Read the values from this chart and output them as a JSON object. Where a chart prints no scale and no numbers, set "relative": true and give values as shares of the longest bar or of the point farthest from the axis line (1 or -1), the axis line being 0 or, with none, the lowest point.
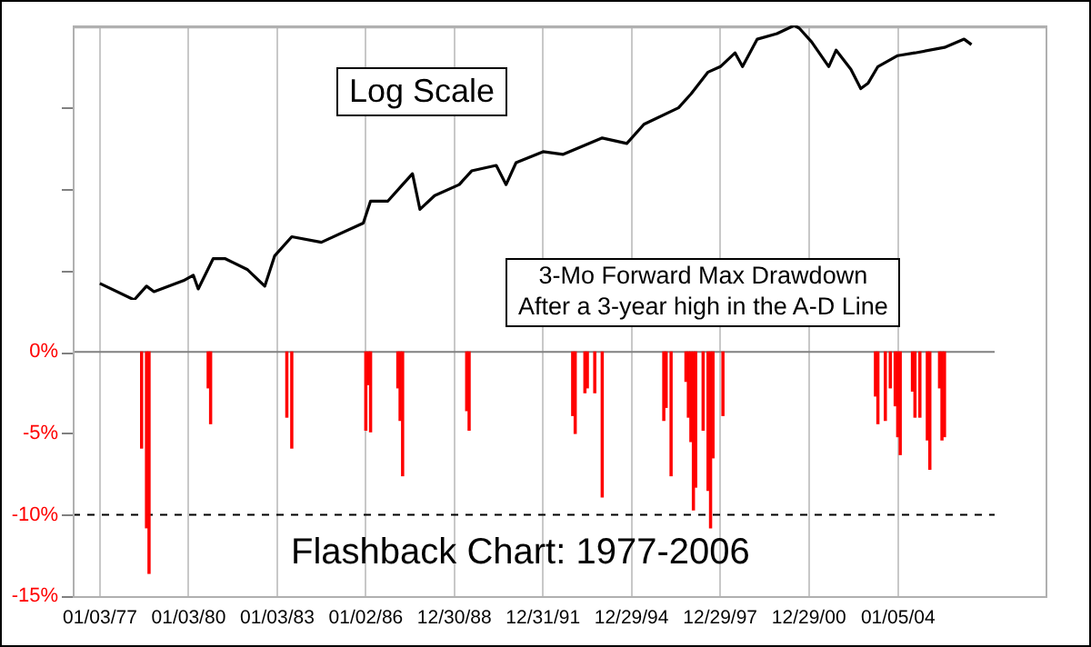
{
  "chart_data": [
    {
      "type": "bar",
      "annotations": [
        "Log Scale",
        "3-Mo Forward Max Drawdown\nAfter a 3-year high in the A-D Line",
        "Flashback Chart: 1977-2006"
      ],
      "xlim": [
        "1976-02",
        "2009-01"
      ],
      "xticks": [
        {
          "value": "1977-01-03",
          "label": "01/03/77"
        },
        {
          "value": "1980-01-03",
          "label": "01/03/80"
        },
        {
          "value": "1983-01-03",
          "label": "01/03/83"
        },
        {
          "value": "1986-01-02",
          "label": "01/02/86"
        },
        {
          "value": "1988-12-30",
          "label": "12/30/88"
        },
        {
          "value": "1991-12-31",
          "label": "12/31/91"
        },
        {
          "value": "1994-12-29",
          "label": "12/29/94"
        },
        {
          "value": "1997-12-29",
          "label": "12/29/97"
        },
        {
          "value": "2000-12-29",
          "label": "12/29/00"
        },
        {
          "value": "2004-01-05",
          "label": "01/05/04"
        }
      ],
      "ylim": [
        -15,
        20
      ],
      "yticks": [
        {
          "value": -15,
          "label": "-15%"
        },
        {
          "value": -10,
          "label": "-10%"
        },
        {
          "value": -5,
          "label": "-5%"
        },
        {
          "value": 0,
          "label": "0%"
        },
        {
          "value": 5,
          "label": null
        },
        {
          "value": 10,
          "label": null
        },
        {
          "value": 15,
          "label": null
        }
      ],
      "grid": "x",
      "legend": false,
      "ref_lines": [
        {
          "axis": "y",
          "value": 0,
          "color": "#808080",
          "line_style": "solid"
        },
        {
          "axis": "y",
          "value": -10,
          "color": "#000000",
          "line_style": "dashed"
        }
      ],
      "series": [
        {
          "color": "#ff0000",
          "x": [
            "1978-06",
            "1978-08",
            "1978-09",
            "1980-09",
            "1980-10",
            "1983-05",
            "1983-07",
            "1986-01",
            "1986-02",
            "1986-03",
            "1987-02",
            "1987-03",
            "1987-04",
            "1989-06",
            "1989-07",
            "1993-01",
            "1993-02",
            "1993-06",
            "1993-07",
            "1993-10",
            "1994-01",
            "1996-02",
            "1996-03",
            "1996-05",
            "1996-11",
            "1996-12",
            "1997-01",
            "1997-02",
            "1997-03",
            "1997-06",
            "1997-08",
            "1997-09",
            "1997-10",
            "1998-02",
            "2003-04",
            "2003-05",
            "2003-08",
            "2003-10",
            "2003-12",
            "2004-01",
            "2004-02",
            "2004-07",
            "2004-08",
            "2004-10",
            "2005-01",
            "2005-02",
            "2005-06",
            "2005-07",
            "2005-08"
          ],
          "values": [
            -5.9,
            -10.8,
            -13.6,
            -2.2,
            -4.4,
            -4.0,
            -5.9,
            -4.8,
            -2.0,
            -4.9,
            -2.2,
            -4.2,
            -7.6,
            -3.6,
            -4.8,
            -3.9,
            -5.0,
            -2.5,
            -2.2,
            -2.5,
            -8.9,
            -4.2,
            -3.4,
            -7.6,
            -1.8,
            -4.0,
            -5.5,
            -9.7,
            -8.3,
            -4.8,
            -8.5,
            -10.8,
            -6.5,
            -3.9,
            -2.7,
            -4.4,
            -4.2,
            -2.2,
            -3.3,
            -5.2,
            -6.3,
            -2.4,
            -4.0,
            -4.0,
            -5.4,
            -7.2,
            -2.2,
            -5.4,
            -5.2
          ]
        }
      ]
    },
    {
      "type": "line",
      "relative": true,
      "xlim": [
        "1976-02",
        "2009-01"
      ],
      "legend": false,
      "series": [
        {
          "color": "#000000",
          "x": [
            "1977-01",
            "1978-03",
            "1978-08",
            "1978-11",
            "1979-11",
            "1980-03",
            "1980-05",
            "1980-11",
            "1981-04",
            "1982-01",
            "1982-08",
            "1982-12",
            "1983-07",
            "1984-07",
            "1985-12",
            "1986-03",
            "1986-10",
            "1987-04",
            "1987-08",
            "1987-11",
            "1988-05",
            "1989-03",
            "1989-08",
            "1990-06",
            "1990-10",
            "1991-02",
            "1992-01",
            "1992-09",
            "1994-01",
            "1994-11",
            "1995-06",
            "1996-08",
            "1997-01",
            "1997-08",
            "1998-01",
            "1998-07",
            "1998-10",
            "1999-04",
            "1999-12",
            "2000-07",
            "2000-09",
            "2001-02",
            "2001-09",
            "2001-12",
            "2002-06",
            "2002-10",
            "2003-01",
            "2003-05",
            "2004-01",
            "2004-08",
            "2005-08",
            "2006-04",
            "2006-07"
          ],
          "values": [
            0.06,
            0,
            0.05,
            0.03,
            0.07,
            0.09,
            0.04,
            0.15,
            0.15,
            0.11,
            0.05,
            0.16,
            0.23,
            0.21,
            0.28,
            0.36,
            0.36,
            0.42,
            0.46,
            0.33,
            0.38,
            0.42,
            0.47,
            0.49,
            0.42,
            0.5,
            0.54,
            0.53,
            0.59,
            0.57,
            0.64,
            0.7,
            0.75,
            0.83,
            0.85,
            0.9,
            0.85,
            0.95,
            0.97,
            1,
            0.99,
            0.94,
            0.85,
            0.91,
            0.84,
            0.77,
            0.79,
            0.85,
            0.89,
            0.9,
            0.92,
            0.95,
            0.93
          ]
        }
      ]
    }
  ]
}
